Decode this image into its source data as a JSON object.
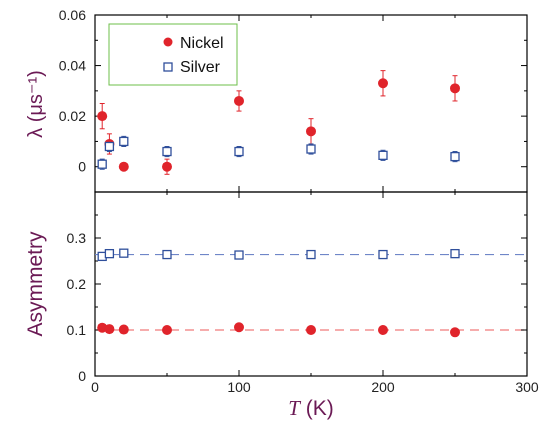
{
  "colors": {
    "nickel": "#e0242b",
    "silver": "#2f4f9b",
    "nickel_fit": "#f07a7a",
    "silver_fit": "#6f86c8",
    "legend_border": "#6cbf4a",
    "axis_title": "#6b1a55"
  },
  "chart_data": [
    {
      "type": "scatter",
      "panel": "top",
      "title": "",
      "ylabel": "λ (μs⁻¹)",
      "xlim": [
        0,
        300
      ],
      "ylim": [
        -0.01,
        0.06
      ],
      "yticks": [
        "0",
        "0.02",
        "0.04",
        "0.06"
      ],
      "legend": {
        "placement": "top-left",
        "entries": [
          "Nickel",
          "Silver"
        ]
      },
      "series": [
        {
          "name": "Nickel",
          "marker": "filled-circle",
          "x": [
            5,
            10,
            20,
            50,
            100,
            150,
            200,
            250
          ],
          "y": [
            0.02,
            0.009,
            0.0,
            0.0,
            0.026,
            0.014,
            0.033,
            0.031
          ],
          "err": [
            0.005,
            0.004,
            0.0,
            0.003,
            0.004,
            0.005,
            0.005,
            0.005
          ]
        },
        {
          "name": "Silver",
          "marker": "open-square",
          "x": [
            5,
            10,
            20,
            50,
            100,
            150,
            200,
            250
          ],
          "y": [
            0.001,
            0.008,
            0.01,
            0.006,
            0.006,
            0.007,
            0.0045,
            0.004
          ],
          "err": [
            0.002,
            0.002,
            0.002,
            0.002,
            0.002,
            0.002,
            0.002,
            0.002
          ]
        }
      ]
    },
    {
      "type": "scatter",
      "panel": "bottom",
      "title": "",
      "xlabel_italic": "T",
      "xlabel_unit": " (K)",
      "ylabel": "Asymmetry",
      "xlim": [
        0,
        300
      ],
      "ylim": [
        0,
        0.4
      ],
      "xticks": [
        "0",
        "100",
        "200",
        "300"
      ],
      "yticks": [
        "0",
        "0.1",
        "0.2",
        "0.3"
      ],
      "series": [
        {
          "name": "Nickel",
          "marker": "filled-circle",
          "x": [
            5,
            10,
            20,
            50,
            100,
            150,
            200,
            250
          ],
          "y": [
            0.105,
            0.102,
            0.101,
            0.1,
            0.106,
            0.1,
            0.1,
            0.095
          ],
          "fit": 0.1
        },
        {
          "name": "Silver",
          "marker": "open-square",
          "x": [
            5,
            10,
            20,
            50,
            100,
            150,
            200,
            250
          ],
          "y": [
            0.26,
            0.266,
            0.267,
            0.264,
            0.263,
            0.264,
            0.264,
            0.266
          ],
          "fit": 0.264
        }
      ]
    }
  ]
}
